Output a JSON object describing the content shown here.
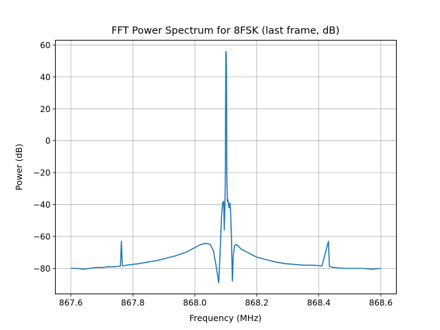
{
  "chart_data": {
    "type": "line",
    "title": "FFT Power Spectrum for 8FSK (last frame, dB)",
    "xlabel": "Frequency (MHz)",
    "ylabel": "Power (dB)",
    "xlim": [
      867.55,
      868.65
    ],
    "ylim": [
      -96,
      63
    ],
    "grid": true,
    "xticks": [
      867.6,
      867.8,
      868.0,
      868.2,
      868.4,
      868.6
    ],
    "xtick_labels": [
      "867.6",
      "867.8",
      "868.0",
      "868.2",
      "868.4",
      "868.6"
    ],
    "yticks": [
      -80,
      -60,
      -40,
      -20,
      0,
      20,
      40,
      60
    ],
    "ytick_labels": [
      "−80",
      "−60",
      "−40",
      "−20",
      "0",
      "20",
      "40",
      "60"
    ],
    "series": [
      {
        "color": "#1f77b4",
        "x": [
          867.6,
          867.62,
          867.64,
          867.66,
          867.68,
          867.7,
          867.72,
          867.74,
          867.76,
          867.763,
          867.766,
          867.769,
          867.78,
          867.8,
          867.82,
          867.85,
          867.88,
          867.91,
          867.94,
          867.97,
          868.0,
          868.02,
          868.035,
          868.05,
          868.06,
          868.07,
          868.077,
          868.082,
          868.085,
          868.087,
          868.09,
          868.093,
          868.095,
          868.097,
          868.098,
          868.099,
          868.1,
          868.101,
          868.102,
          868.103,
          868.105,
          868.107,
          868.11,
          868.113,
          868.115,
          868.118,
          868.121,
          868.124,
          868.128,
          868.133,
          868.14,
          868.15,
          868.17,
          868.2,
          868.23,
          868.26,
          868.29,
          868.32,
          868.35,
          868.38,
          868.41,
          868.431,
          868.434,
          868.437,
          868.45,
          868.48,
          868.51,
          868.54,
          868.57,
          868.6
        ],
        "y": [
          -80,
          -80,
          -80.5,
          -80,
          -79.5,
          -79.5,
          -79,
          -79,
          -78.5,
          -63,
          -78,
          -78.5,
          -78,
          -77.5,
          -77,
          -76,
          -75,
          -73.5,
          -72,
          -70,
          -67,
          -65,
          -64.3,
          -65,
          -69,
          -80,
          -89,
          -68,
          -52,
          -45,
          -39,
          -38,
          -56,
          -40,
          -30,
          10,
          56,
          55,
          40,
          -20,
          -38,
          -37,
          -42,
          -39,
          -43,
          -60,
          -88,
          -72,
          -66,
          -65,
          -66,
          -68,
          -70,
          -73,
          -74.5,
          -76,
          -77,
          -77.5,
          -78,
          -78,
          -78.5,
          -63,
          -78.5,
          -79,
          -79.5,
          -80,
          -80,
          -80,
          -80.5,
          -80
        ]
      }
    ]
  }
}
